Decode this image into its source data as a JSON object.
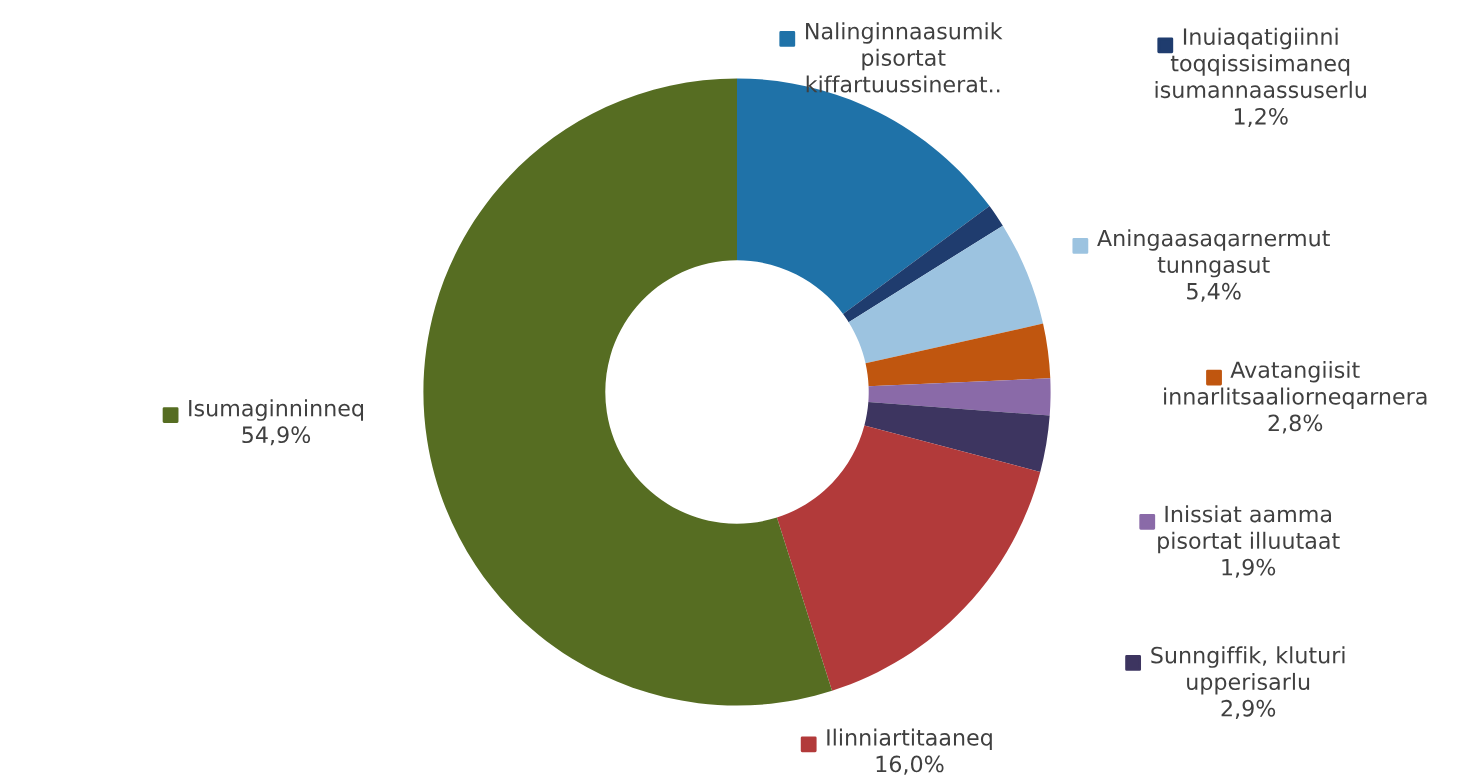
{
  "chart_data": {
    "type": "donut",
    "categories": [
      "Nalinginnaasumik\npisortat\nkiffartuussinerat..",
      "Inuiaqatigiinni\ntoqqissisimaneq\nisumannaassuserlu",
      "Aningaasaqarnermut\ntunngasut",
      "Avatangiisit\ninnarlitsaaliorneqarnera",
      "Inissiat aamma\npisortat illuutaat",
      "Sunngiffik, kluturi\nupperisarlu",
      "Ilinniartitaaneq",
      "Isumaginninneq"
    ],
    "values": [
      14.9,
      1.2,
      5.4,
      2.8,
      1.9,
      2.9,
      16.0,
      54.9
    ],
    "value_labels": [
      null,
      "1,2%",
      "5,4%",
      "2,8%",
      "1,9%",
      "2,9%",
      "16,0%",
      "54,9%"
    ],
    "legend": "right",
    "colors": [
      "#1f72a8",
      "#1f3c6e",
      "#9cc3e0",
      "#c0560f",
      "#8a6aa8",
      "#3d3560",
      "#b23a3a",
      "#566d22"
    ]
  }
}
